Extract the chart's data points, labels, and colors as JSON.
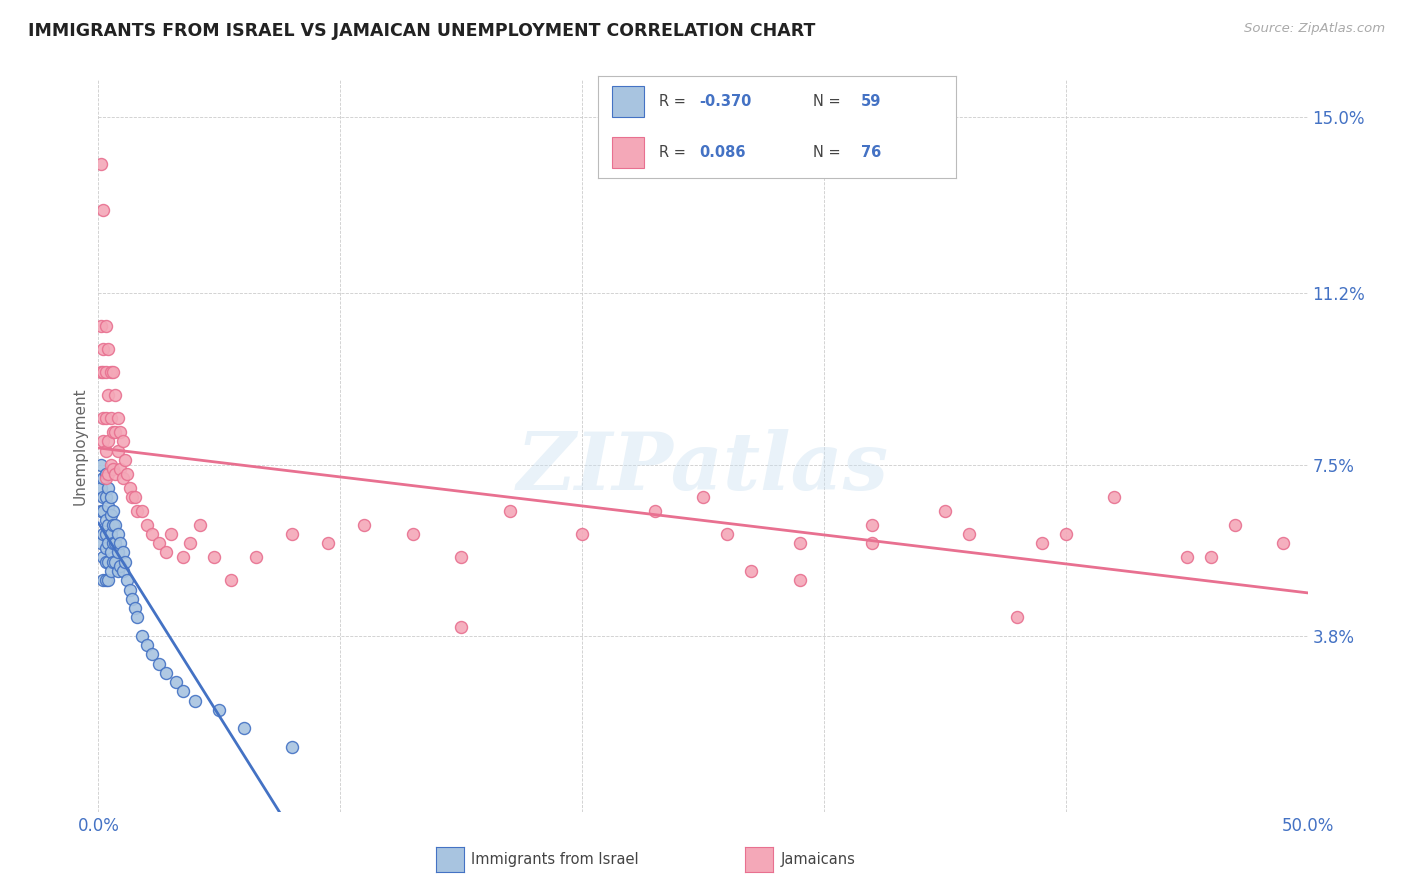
{
  "title": "IMMIGRANTS FROM ISRAEL VS JAMAICAN UNEMPLOYMENT CORRELATION CHART",
  "source": "Source: ZipAtlas.com",
  "ylabel": "Unemployment",
  "yticks": [
    0.0,
    0.038,
    0.075,
    0.112,
    0.15
  ],
  "ytick_labels": [
    "",
    "3.8%",
    "7.5%",
    "11.2%",
    "15.0%"
  ],
  "xmin": 0.0,
  "xmax": 0.5,
  "ymin": 0.0,
  "ymax": 0.158,
  "legend_label1": "Immigrants from Israel",
  "legend_label2": "Jamaicans",
  "color_israel": "#a8c4e0",
  "color_jamaican": "#f4a8b8",
  "color_line_israel": "#4472c4",
  "color_line_jamaican": "#e87090",
  "background_color": "#ffffff",
  "watermark": "ZIPatlas",
  "R_israel": -0.37,
  "N_israel": 59,
  "R_jamaican": 0.086,
  "N_jamaican": 76,
  "israel_x": [
    0.001,
    0.001,
    0.001,
    0.001,
    0.002,
    0.002,
    0.002,
    0.002,
    0.002,
    0.002,
    0.003,
    0.003,
    0.003,
    0.003,
    0.003,
    0.003,
    0.003,
    0.004,
    0.004,
    0.004,
    0.004,
    0.004,
    0.004,
    0.005,
    0.005,
    0.005,
    0.005,
    0.005,
    0.006,
    0.006,
    0.006,
    0.006,
    0.007,
    0.007,
    0.007,
    0.008,
    0.008,
    0.008,
    0.009,
    0.009,
    0.01,
    0.01,
    0.011,
    0.012,
    0.013,
    0.014,
    0.015,
    0.016,
    0.018,
    0.02,
    0.022,
    0.025,
    0.028,
    0.032,
    0.035,
    0.04,
    0.05,
    0.06,
    0.08
  ],
  "israel_y": [
    0.075,
    0.07,
    0.065,
    0.058,
    0.072,
    0.068,
    0.065,
    0.06,
    0.055,
    0.05,
    0.073,
    0.068,
    0.063,
    0.06,
    0.057,
    0.054,
    0.05,
    0.07,
    0.066,
    0.062,
    0.058,
    0.054,
    0.05,
    0.068,
    0.064,
    0.06,
    0.056,
    0.052,
    0.065,
    0.062,
    0.058,
    0.054,
    0.062,
    0.058,
    0.054,
    0.06,
    0.056,
    0.052,
    0.058,
    0.053,
    0.056,
    0.052,
    0.054,
    0.05,
    0.048,
    0.046,
    0.044,
    0.042,
    0.038,
    0.036,
    0.034,
    0.032,
    0.03,
    0.028,
    0.026,
    0.024,
    0.022,
    0.018,
    0.014
  ],
  "jamaican_x": [
    0.001,
    0.001,
    0.001,
    0.002,
    0.002,
    0.002,
    0.002,
    0.002,
    0.003,
    0.003,
    0.003,
    0.003,
    0.003,
    0.004,
    0.004,
    0.004,
    0.004,
    0.005,
    0.005,
    0.005,
    0.006,
    0.006,
    0.006,
    0.007,
    0.007,
    0.007,
    0.008,
    0.008,
    0.009,
    0.009,
    0.01,
    0.01,
    0.011,
    0.012,
    0.013,
    0.014,
    0.015,
    0.016,
    0.018,
    0.02,
    0.022,
    0.025,
    0.028,
    0.03,
    0.035,
    0.038,
    0.042,
    0.048,
    0.055,
    0.065,
    0.08,
    0.095,
    0.11,
    0.13,
    0.15,
    0.17,
    0.2,
    0.23,
    0.26,
    0.29,
    0.32,
    0.36,
    0.39,
    0.42,
    0.45,
    0.47,
    0.49,
    0.15,
    0.25,
    0.35,
    0.4,
    0.38,
    0.46,
    0.32,
    0.29,
    0.27
  ],
  "jamaican_y": [
    0.14,
    0.105,
    0.095,
    0.13,
    0.1,
    0.095,
    0.085,
    0.08,
    0.105,
    0.095,
    0.085,
    0.078,
    0.072,
    0.1,
    0.09,
    0.08,
    0.073,
    0.095,
    0.085,
    0.075,
    0.095,
    0.082,
    0.074,
    0.09,
    0.082,
    0.073,
    0.085,
    0.078,
    0.082,
    0.074,
    0.08,
    0.072,
    0.076,
    0.073,
    0.07,
    0.068,
    0.068,
    0.065,
    0.065,
    0.062,
    0.06,
    0.058,
    0.056,
    0.06,
    0.055,
    0.058,
    0.062,
    0.055,
    0.05,
    0.055,
    0.06,
    0.058,
    0.062,
    0.06,
    0.055,
    0.065,
    0.06,
    0.065,
    0.06,
    0.058,
    0.062,
    0.06,
    0.058,
    0.068,
    0.055,
    0.062,
    0.058,
    0.04,
    0.068,
    0.065,
    0.06,
    0.042,
    0.055,
    0.058,
    0.05,
    0.052
  ]
}
